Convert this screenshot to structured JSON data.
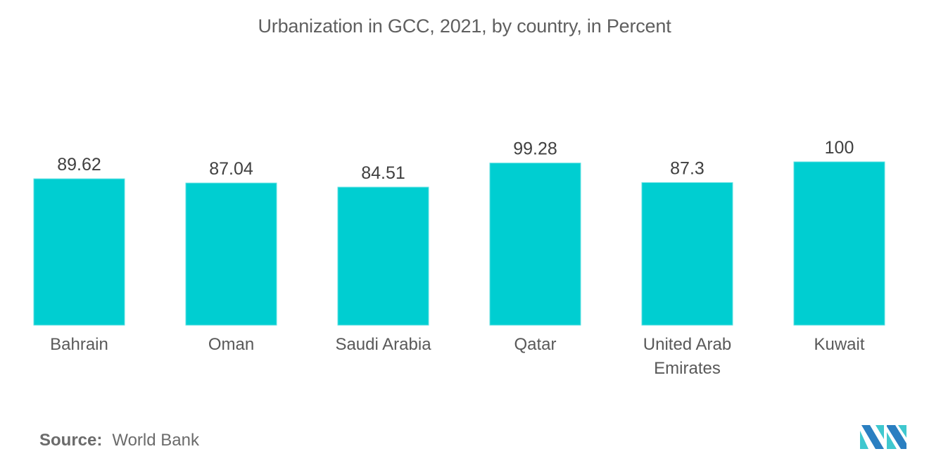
{
  "colors": {
    "bar": "#00CED1",
    "bar_edge": "#5fe0e2",
    "value_text": "#404040",
    "category_text": "#595959",
    "logo_dark": "#2a7fc1",
    "logo_light": "#3fc8cf"
  },
  "source": {
    "label": "Source:",
    "value": "World Bank"
  },
  "logo": {
    "name": "Mordor Intelligence logo"
  },
  "chart_data": {
    "type": "bar",
    "title": "Urbanization in GCC, 2021, by country, in Percent",
    "xlabel": "",
    "ylabel": "",
    "ylim": [
      0,
      100
    ],
    "grid": false,
    "legend": "none",
    "categories": [
      "Bahrain",
      "Oman",
      "Saudi Arabia",
      "Qatar",
      "United Arab Emirates",
      "Kuwait"
    ],
    "category_lines": [
      [
        "Bahrain"
      ],
      [
        "Oman"
      ],
      [
        "Saudi Arabia"
      ],
      [
        "Qatar"
      ],
      [
        "United Arab",
        "Emirates"
      ],
      [
        "Kuwait"
      ]
    ],
    "values": [
      89.62,
      87.04,
      84.51,
      99.28,
      87.3,
      100
    ],
    "value_labels": [
      "89.62",
      "87.04",
      "84.51",
      "99.28",
      "87.3",
      "100"
    ]
  }
}
